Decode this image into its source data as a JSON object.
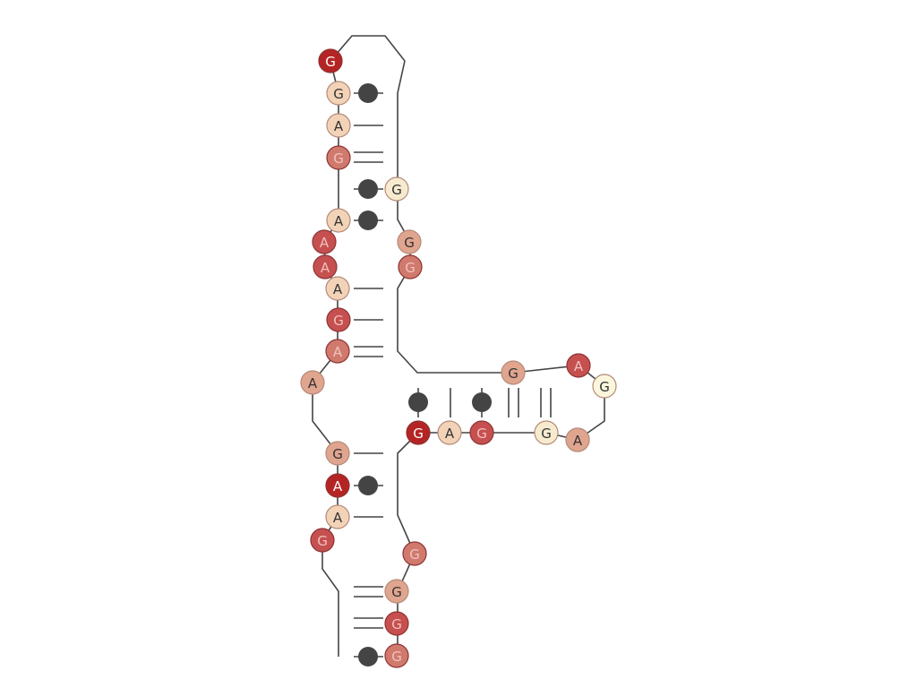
{
  "diagram": {
    "title": "RNA secondary structure",
    "palette": {
      "dark_red": "#b52424",
      "red": "#c65050",
      "rose": "#d07a6e",
      "salmon": "#e0a58f",
      "peach": "#f3d3b8",
      "cream": "#f7ebcf",
      "ivory": "#fbf7dc"
    },
    "nucleotides": [
      {
        "base": "G",
        "color": "dark_red"
      },
      {
        "base": "G",
        "color": "peach"
      },
      {
        "base": "A",
        "color": "peach"
      },
      {
        "base": "G",
        "color": "rose"
      },
      {
        "base": "G",
        "color": "cream"
      },
      {
        "base": "A",
        "color": "peach"
      },
      {
        "base": "A",
        "color": "red"
      },
      {
        "base": "A",
        "color": "red"
      },
      {
        "base": "A",
        "color": "peach"
      },
      {
        "base": "G",
        "color": "red"
      },
      {
        "base": "A",
        "color": "rose"
      },
      {
        "base": "A",
        "color": "salmon"
      },
      {
        "base": "G",
        "color": "salmon"
      },
      {
        "base": "A",
        "color": "dark_red"
      },
      {
        "base": "A",
        "color": "peach"
      },
      {
        "base": "G",
        "color": "red"
      },
      {
        "base": "G",
        "color": "salmon"
      },
      {
        "base": "G",
        "color": "rose"
      },
      {
        "base": "G",
        "color": "rose"
      },
      {
        "base": "G",
        "color": "dark_red"
      },
      {
        "base": "A",
        "color": "peach"
      },
      {
        "base": "G",
        "color": "red"
      },
      {
        "base": "G",
        "color": "cream"
      },
      {
        "base": "A",
        "color": "salmon"
      },
      {
        "base": "G",
        "color": "ivory"
      },
      {
        "base": "A",
        "color": "red"
      },
      {
        "base": "G",
        "color": "salmon"
      },
      {
        "base": "G",
        "color": "salmon"
      },
      {
        "base": "G",
        "color": "red"
      },
      {
        "base": "G",
        "color": "rose"
      },
      {
        "base": "A",
        "color": "salmon"
      }
    ],
    "pairs": [
      {
        "type": "wobble",
        "desc": "G-G"
      },
      {
        "type": "single",
        "desc": "A-"
      },
      {
        "type": "double",
        "desc": "G="
      },
      {
        "type": "wobble",
        "desc": "-G"
      },
      {
        "type": "wobble",
        "desc": "G-"
      },
      {
        "type": "single",
        "desc": "A-"
      },
      {
        "type": "single",
        "desc": "A-"
      },
      {
        "type": "double",
        "desc": "G="
      },
      {
        "type": "single",
        "desc": "A-"
      },
      {
        "type": "wobble",
        "desc": "G-"
      },
      {
        "type": "single",
        "desc": "A-"
      },
      {
        "type": "double",
        "desc": "=G"
      },
      {
        "type": "double",
        "desc": "=G"
      },
      {
        "type": "wobble",
        "desc": "-G"
      },
      {
        "type": "wobble",
        "desc": "G|"
      },
      {
        "type": "single",
        "desc": "A|"
      },
      {
        "type": "wobble",
        "desc": "G|"
      },
      {
        "type": "double",
        "desc": "||"
      },
      {
        "type": "double",
        "desc": "G||"
      }
    ]
  }
}
